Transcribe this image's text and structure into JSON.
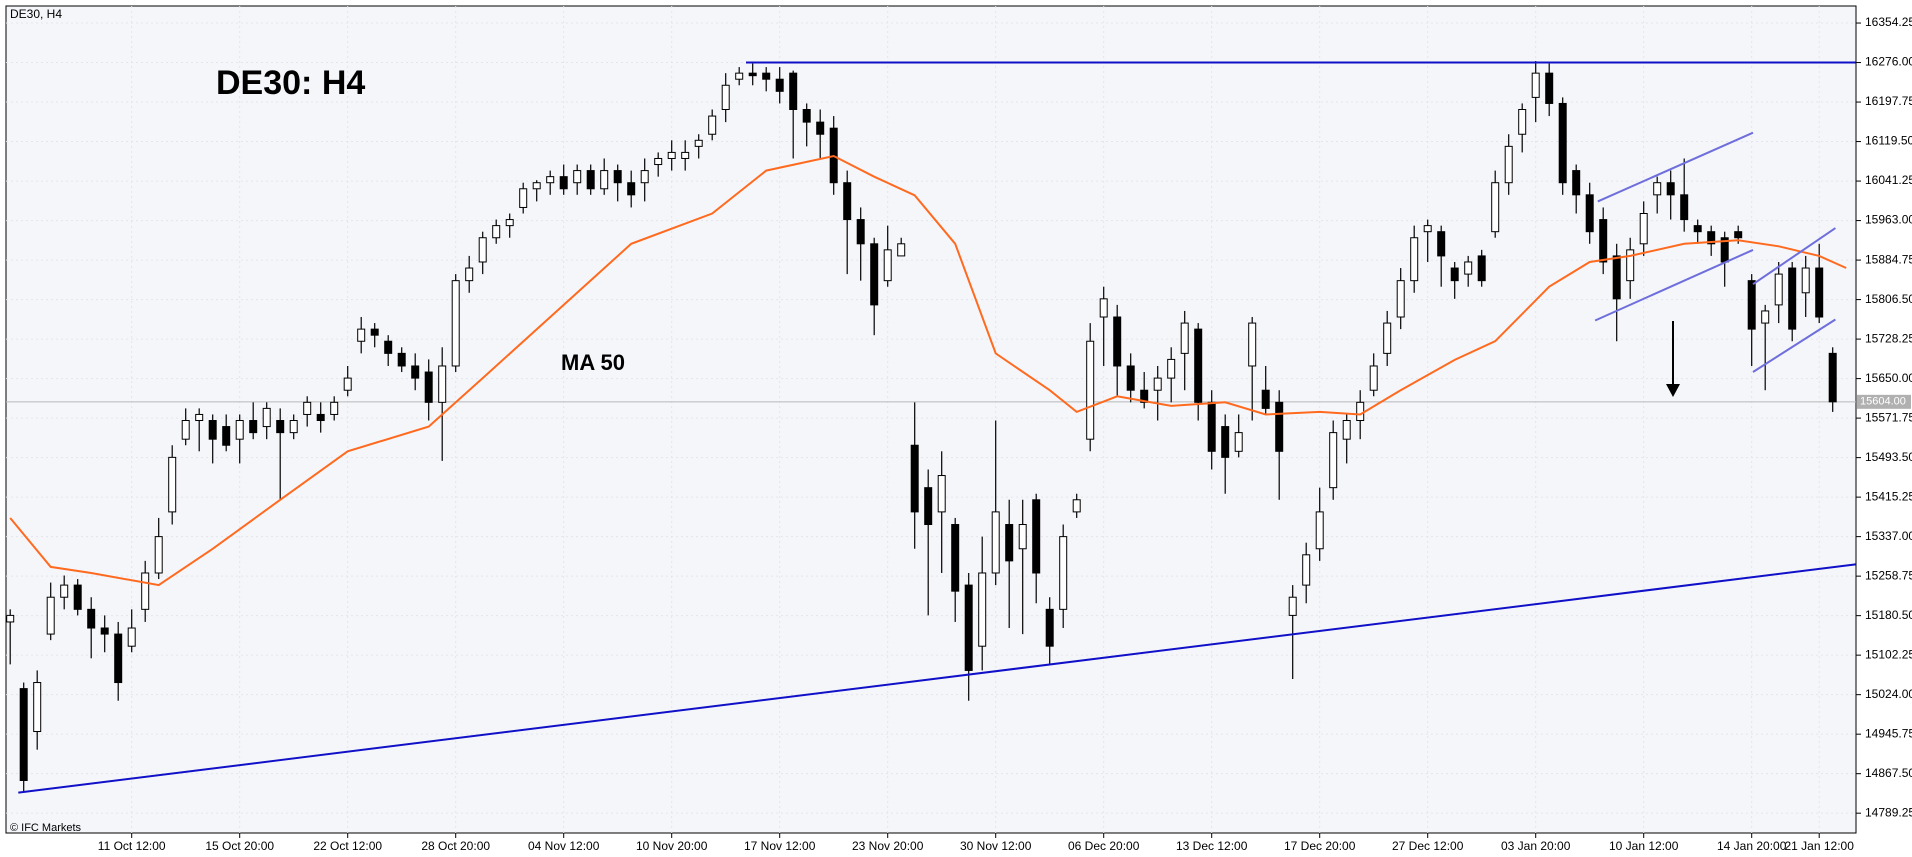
{
  "chart_data": {
    "type": "candlestick",
    "symbol_label": "DE30, H4",
    "title": "DE30: H4",
    "copyright": "© IFC Markets",
    "categories": [
      null,
      null,
      null,
      null,
      null,
      null,
      null,
      null,
      null,
      "11 Oct 12:00",
      null,
      null,
      null,
      null,
      null,
      null,
      null,
      "15 Oct 20:00",
      null,
      null,
      null,
      null,
      null,
      null,
      null,
      "22 Oct 12:00",
      null,
      null,
      null,
      null,
      null,
      null,
      null,
      "28 Oct 20:00",
      null,
      null,
      null,
      null,
      null,
      null,
      null,
      "04 Nov 12:00",
      null,
      null,
      null,
      null,
      null,
      null,
      null,
      "10 Nov 20:00",
      null,
      null,
      null,
      null,
      null,
      null,
      null,
      "17 Nov 12:00",
      null,
      null,
      null,
      null,
      null,
      null,
      null,
      "23 Nov 20:00",
      null,
      null,
      null,
      null,
      null,
      null,
      null,
      "30 Nov 12:00",
      null,
      null,
      null,
      null,
      null,
      null,
      null,
      "06 Dec 20:00",
      null,
      null,
      null,
      null,
      null,
      null,
      null,
      "13 Dec 12:00",
      null,
      null,
      null,
      null,
      null,
      null,
      null,
      "17 Dec 20:00",
      null,
      null,
      null,
      null,
      null,
      null,
      null,
      "27 Dec 12:00",
      null,
      null,
      null,
      null,
      null,
      null,
      null,
      "03 Jan 20:00",
      null,
      null,
      null,
      null,
      null,
      null,
      null,
      "10 Jan 12:00",
      null,
      null,
      null,
      null,
      null,
      null,
      null,
      "14 Jan 20:00",
      null,
      null,
      null,
      null,
      "21 Jan 12:00",
      null
    ],
    "ohlc": [
      [
        15168,
        15193,
        15084,
        15181
      ],
      [
        15036,
        15048,
        14830,
        14854
      ],
      [
        14951,
        15072,
        14915,
        15048
      ],
      [
        15144,
        15246,
        15132,
        15217
      ],
      [
        15217,
        15260,
        15193,
        15241
      ],
      [
        15241,
        15253,
        15181,
        15193
      ],
      [
        15193,
        15217,
        15096,
        15156
      ],
      [
        15156,
        15181,
        15108,
        15144
      ],
      [
        15144,
        15168,
        15012,
        15048
      ],
      [
        15120,
        15193,
        15108,
        15156
      ],
      [
        15193,
        15289,
        15168,
        15265
      ],
      [
        15265,
        15374,
        15253,
        15337
      ],
      [
        15386,
        15518,
        15361,
        15494
      ],
      [
        15530,
        15591,
        15518,
        15567
      ],
      [
        15567,
        15591,
        15506,
        15579
      ],
      [
        15567,
        15579,
        15482,
        15530
      ],
      [
        15555,
        15579,
        15506,
        15518
      ],
      [
        15530,
        15579,
        15482,
        15567
      ],
      [
        15567,
        15603,
        15530,
        15543
      ],
      [
        15555,
        15603,
        15530,
        15591
      ],
      [
        15567,
        15591,
        15410,
        15543
      ],
      [
        15543,
        15579,
        15530,
        15567
      ],
      [
        15579,
        15615,
        15555,
        15603
      ],
      [
        15579,
        15603,
        15543,
        15567
      ],
      [
        15579,
        15615,
        15567,
        15603
      ],
      [
        15627,
        15675,
        15615,
        15651
      ],
      [
        15724,
        15772,
        15700,
        15748
      ],
      [
        15748,
        15760,
        15712,
        15736
      ],
      [
        15724,
        15736,
        15675,
        15700
      ],
      [
        15700,
        15712,
        15663,
        15675
      ],
      [
        15675,
        15700,
        15627,
        15651
      ],
      [
        15663,
        15688,
        15567,
        15603
      ],
      [
        15603,
        15712,
        15487,
        15675
      ],
      [
        15675,
        15857,
        15663,
        15844
      ],
      [
        15844,
        15893,
        15820,
        15869
      ],
      [
        15881,
        15941,
        15857,
        15929
      ],
      [
        15929,
        15965,
        15917,
        15953
      ],
      [
        15953,
        15977,
        15929,
        15965
      ],
      [
        15989,
        16038,
        15977,
        16026
      ],
      [
        16026,
        16043,
        16001,
        16038
      ],
      [
        16038,
        16062,
        16014,
        16050
      ],
      [
        16050,
        16074,
        16014,
        16026
      ],
      [
        16038,
        16074,
        16014,
        16062
      ],
      [
        16062,
        16074,
        16014,
        16026
      ],
      [
        16026,
        16086,
        16014,
        16062
      ],
      [
        16062,
        16074,
        16001,
        16038
      ],
      [
        16038,
        16062,
        15989,
        16014
      ],
      [
        16038,
        16086,
        16001,
        16062
      ],
      [
        16074,
        16098,
        16050,
        16086
      ],
      [
        16086,
        16122,
        16062,
        16098
      ],
      [
        16086,
        16122,
        16062,
        16098
      ],
      [
        16110,
        16134,
        16086,
        16122
      ],
      [
        16134,
        16183,
        16122,
        16170
      ],
      [
        16183,
        16255,
        16158,
        16231
      ],
      [
        16243,
        16267,
        16231,
        16255
      ],
      [
        16255,
        16274,
        16231,
        16250
      ],
      [
        16255,
        16267,
        16219,
        16243
      ],
      [
        16243,
        16267,
        16195,
        16219
      ],
      [
        16255,
        16260,
        16086,
        16183
      ],
      [
        16183,
        16195,
        16110,
        16158
      ],
      [
        16158,
        16183,
        16086,
        16134
      ],
      [
        16146,
        16170,
        16014,
        16038
      ],
      [
        16038,
        16062,
        15857,
        15965
      ],
      [
        15965,
        15989,
        15844,
        15917
      ],
      [
        15917,
        15929,
        15736,
        15796
      ],
      [
        15844,
        15953,
        15832,
        15905
      ],
      [
        15893,
        15929,
        15893,
        15917
      ],
      [
        15518,
        15603,
        15313,
        15386
      ],
      [
        15434,
        15470,
        15181,
        15361
      ],
      [
        15386,
        15506,
        15265,
        15458
      ],
      [
        15361,
        15374,
        15168,
        15229
      ],
      [
        15241,
        15265,
        15012,
        15072
      ],
      [
        15120,
        15337,
        15072,
        15265
      ],
      [
        15265,
        15567,
        15241,
        15386
      ],
      [
        15361,
        15410,
        15156,
        15289
      ],
      [
        15313,
        15410,
        15144,
        15361
      ],
      [
        15410,
        15422,
        15205,
        15265
      ],
      [
        15193,
        15217,
        15084,
        15120
      ],
      [
        15193,
        15361,
        15156,
        15337
      ],
      [
        15386,
        15422,
        15374,
        15410
      ],
      [
        15530,
        15760,
        15506,
        15724
      ],
      [
        15772,
        15832,
        15675,
        15808
      ],
      [
        15772,
        15796,
        15615,
        15675
      ],
      [
        15675,
        15700,
        15603,
        15627
      ],
      [
        15627,
        15663,
        15591,
        15603
      ],
      [
        15627,
        15675,
        15567,
        15651
      ],
      [
        15651,
        15712,
        15603,
        15688
      ],
      [
        15700,
        15784,
        15627,
        15760
      ],
      [
        15748,
        15760,
        15567,
        15603
      ],
      [
        15603,
        15627,
        15470,
        15506
      ],
      [
        15555,
        15579,
        15422,
        15494
      ],
      [
        15506,
        15579,
        15494,
        15543
      ],
      [
        15675,
        15772,
        15567,
        15760
      ],
      [
        15627,
        15675,
        15579,
        15591
      ],
      [
        15603,
        15627,
        15410,
        15506
      ],
      [
        15181,
        15241,
        15055,
        15217
      ],
      [
        15241,
        15325,
        15205,
        15301
      ],
      [
        15313,
        15434,
        15289,
        15386
      ],
      [
        15434,
        15567,
        15410,
        15543
      ],
      [
        15530,
        15579,
        15482,
        15567
      ],
      [
        15567,
        15627,
        15530,
        15603
      ],
      [
        15627,
        15700,
        15615,
        15675
      ],
      [
        15700,
        15784,
        15675,
        15760
      ],
      [
        15772,
        15869,
        15748,
        15844
      ],
      [
        15844,
        15953,
        15820,
        15929
      ],
      [
        15941,
        15965,
        15881,
        15953
      ],
      [
        15941,
        15953,
        15832,
        15893
      ],
      [
        15869,
        15881,
        15808,
        15844
      ],
      [
        15857,
        15893,
        15832,
        15881
      ],
      [
        15893,
        15905,
        15832,
        15844
      ],
      [
        15941,
        16062,
        15929,
        16038
      ],
      [
        16038,
        16134,
        16014,
        16110
      ],
      [
        16134,
        16195,
        16098,
        16183
      ],
      [
        16207,
        16279,
        16158,
        16255
      ],
      [
        16255,
        16274,
        16170,
        16195
      ],
      [
        16195,
        16207,
        16014,
        16038
      ],
      [
        16062,
        16074,
        15977,
        16014
      ],
      [
        16014,
        16038,
        15917,
        15941
      ],
      [
        15965,
        15989,
        15857,
        15881
      ],
      [
        15893,
        15917,
        15724,
        15808
      ],
      [
        15844,
        15929,
        15808,
        15905
      ],
      [
        15917,
        16001,
        15893,
        15977
      ],
      [
        16014,
        16050,
        15977,
        16038
      ],
      [
        16038,
        16062,
        15965,
        16014
      ],
      [
        16014,
        16086,
        15941,
        15965
      ],
      [
        15953,
        15965,
        15917,
        15941
      ],
      [
        15941,
        15953,
        15893,
        15917
      ],
      [
        15929,
        15941,
        15832,
        15881
      ],
      [
        15941,
        15953,
        15917,
        15929
      ],
      [
        15844,
        15857,
        15675,
        15748
      ],
      [
        15760,
        15796,
        15627,
        15784
      ],
      [
        15796,
        15881,
        15760,
        15857
      ],
      [
        15869,
        15881,
        15724,
        15748
      ],
      [
        15820,
        15893,
        15772,
        15869
      ],
      [
        15869,
        15917,
        15760,
        15772
      ],
      [
        15700,
        15712,
        15584,
        15604
      ]
    ],
    "up_color": "#ffffff",
    "down_color": "#000000",
    "ylim": [
      14750,
      16388
    ],
    "yticks": [
      14789.25,
      {
        "value": 14867.5,
        "label": "14867.50"
      },
      14945.75,
      {
        "value": 15024,
        "label": "15024.00"
      },
      15102.25,
      {
        "value": 15180.5,
        "label": "15180.50"
      },
      15258.75,
      {
        "value": 15337,
        "label": "15337.00"
      },
      15415.25,
      {
        "value": 15493.5,
        "label": "15493.50"
      },
      15571.75,
      {
        "value": 15650,
        "label": "15650.00"
      },
      15728.25,
      {
        "value": 15806.5,
        "label": "15806.50"
      },
      15884.75,
      {
        "value": 15963,
        "label": "15963.00"
      },
      16041.25,
      {
        "value": 16119.5,
        "label": "16119.50"
      },
      16197.75,
      {
        "value": 16276,
        "label": "16276.00"
      },
      16354.25
    ],
    "grid": true,
    "last_price": {
      "value": 15604,
      "label": "15604.00"
    },
    "overlays": [
      {
        "name": "MA 50",
        "color": "#ff6a1f",
        "x": [
          0,
          3,
          6,
          11,
          15,
          20,
          25,
          31,
          35,
          41,
          46,
          52,
          56,
          61,
          64,
          67,
          70,
          73,
          77,
          79,
          82,
          86,
          90,
          93,
          97,
          100,
          103,
          107,
          110,
          114,
          117,
          120,
          124,
          128,
          131,
          134,
          136
        ],
        "values": [
          15374,
          15277,
          15265,
          15241,
          15313,
          15410,
          15506,
          15555,
          15651,
          15796,
          15917,
          15977,
          16062,
          16091,
          16050,
          16013,
          15917,
          15700,
          15627,
          15584,
          15615,
          15596,
          15603,
          15579,
          15584,
          15579,
          15627,
          15687,
          15724,
          15832,
          15881,
          15893,
          15917,
          15924,
          15912,
          15893,
          15869
        ]
      }
    ],
    "trend_lines": [
      {
        "color": "#1010c8",
        "x": [
          54.5,
          136.7
        ],
        "values": [
          16276,
          16276
        ]
      },
      {
        "color": "#1010c8",
        "x": [
          0.6,
          136.7
        ],
        "values": [
          14830,
          15282
        ]
      },
      {
        "color": "#6e6edc",
        "x": [
          117.6,
          129.1
        ],
        "values": [
          16001,
          16137
        ]
      },
      {
        "color": "#6e6edc",
        "x": [
          117.4,
          129.1
        ],
        "values": [
          15765,
          15905
        ]
      },
      {
        "color": "#6e6edc",
        "x": [
          129.1,
          135.2
        ],
        "values": [
          15837,
          15948
        ]
      },
      {
        "color": "#6e6edc",
        "x": [
          129.1,
          135.2
        ],
        "values": [
          15663,
          15767
        ]
      }
    ]
  }
}
